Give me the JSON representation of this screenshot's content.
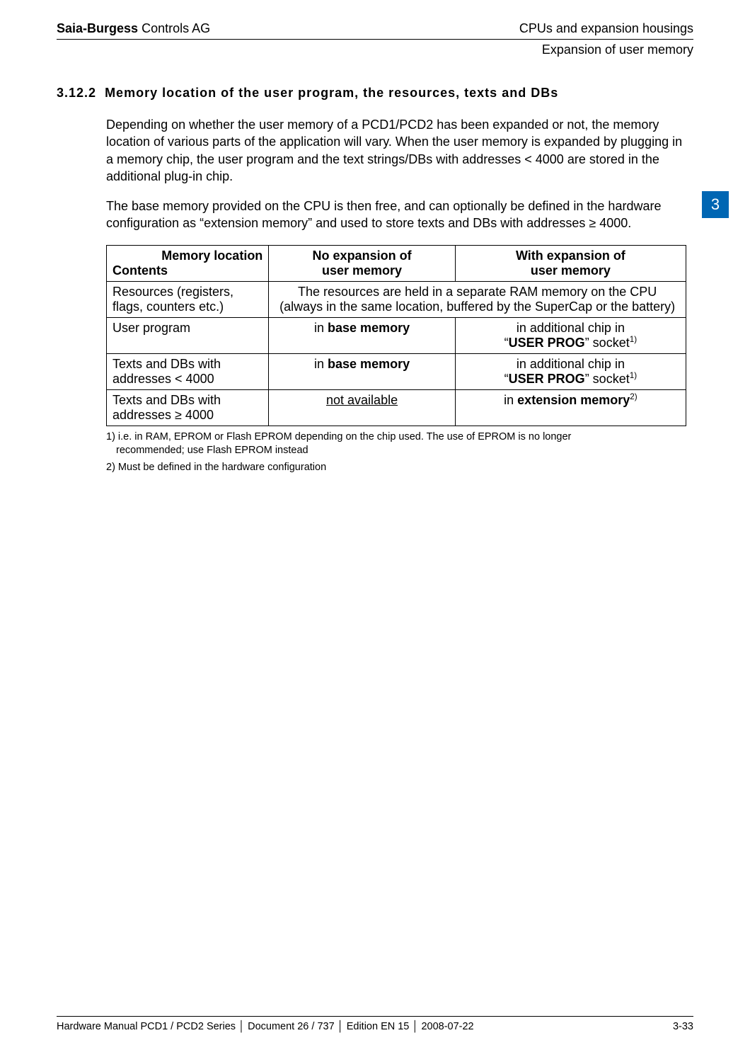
{
  "header": {
    "company_bold": "Saia-Burgess",
    "company_rest": " Controls AG",
    "right": "CPUs and expansion housings",
    "sub_right": "Expansion of user memory"
  },
  "section": {
    "number": "3.12.2",
    "title": "Memory location of the user program, the resources, texts and DBs"
  },
  "para1": "Depending on whether the user memory of a PCD1/PCD2 has been expanded or not, the memory location of various parts of the application will vary. When the user memory is expanded by plugging in a memory chip, the user program and the text strings/DBs with addresses < 4000 are stored in the additional plug-in chip.",
  "para2": "The base memory provided on the CPU is then free, and can optionally be defined in the hardware configuration as “extension memory” and used to store texts and DBs with addresses ≥ 4000.",
  "side_tab": "3",
  "table": {
    "head": {
      "c1_line1": "Memory location",
      "c1_line2": "Contents",
      "c2_line1": "No expansion of",
      "c2_line2": "user memory",
      "c3_line1": "With expansion of",
      "c3_line2": "user memory"
    },
    "row_resources": {
      "c1": "Resources (registers, flags, counters etc.)",
      "c23": "The resources are held in a separate RAM memory on the CPU (always in the same location, buffered by the SuperCap or the battery)"
    },
    "row_userprog": {
      "c1": "User program",
      "c2_pre": "in ",
      "c2_bold": "base memory",
      "c3_line1": "in additional chip in",
      "c3_quote_open": "“",
      "c3_bold": "USER PROG",
      "c3_quote_close_text": "” socket",
      "c3_sup": "1)"
    },
    "row_texts_lt": {
      "c1": "Texts and DBs with addresses < 4000",
      "c2_pre": "in ",
      "c2_bold": "base memory",
      "c3_line1": "in additional chip in",
      "c3_quote_open": "“",
      "c3_bold": "USER PROG",
      "c3_quote_close_text": "” socket",
      "c3_sup": "1)"
    },
    "row_texts_ge": {
      "c1": "Texts and DBs with addresses ≥ 4000",
      "c2": "not available",
      "c3_pre": "in ",
      "c3_bold": "extension memory",
      "c3_sup": "2)"
    }
  },
  "footnotes": {
    "f1a": "1) i.e. in RAM, EPROM or Flash EPROM depending on the chip used. The use of EPROM is no longer",
    "f1b": "recommended; use Flash EPROM instead",
    "f2": "2) Must be defined in the hardware configuration"
  },
  "footer": {
    "manual": "Hardware Manual PCD1 / PCD2 Series",
    "doc": "Document 26 / 737",
    "edition": "Edition EN 15",
    "date": "2008-07-22",
    "page": "3-33"
  },
  "colors": {
    "tab_bg": "#0066b3",
    "tab_fg": "#ffffff"
  }
}
